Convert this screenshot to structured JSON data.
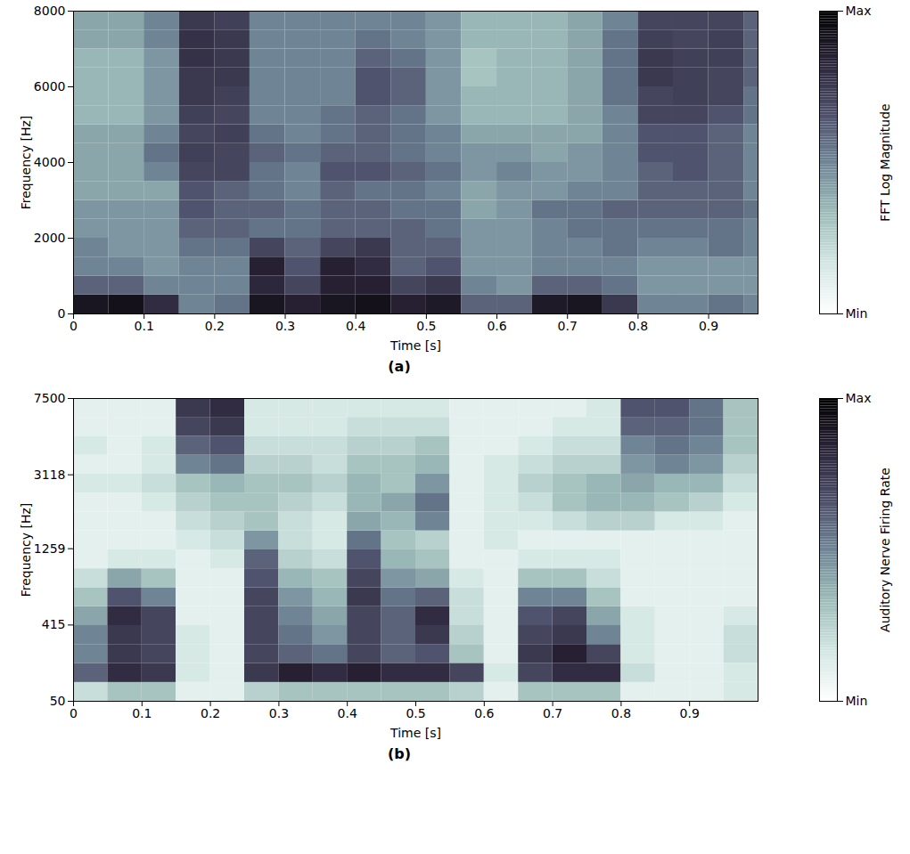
{
  "chart_data": [
    {
      "type": "heatmap",
      "caption": "(a)",
      "x_label": "Time [s]",
      "y_label": "Frequency [Hz]",
      "xlim": [
        0,
        0.97
      ],
      "xticks": [
        0,
        0.1,
        0.2,
        0.3,
        0.4,
        0.5,
        0.6,
        0.7,
        0.8,
        0.9
      ],
      "ylim": [
        0,
        8000
      ],
      "yticks": [
        0,
        2000,
        4000,
        6000,
        8000
      ],
      "x_bins": [
        0,
        0.05,
        0.1,
        0.15,
        0.2,
        0.25,
        0.3,
        0.35,
        0.4,
        0.45,
        0.5,
        0.55,
        0.6,
        0.65,
        0.7,
        0.75,
        0.8,
        0.85,
        0.9,
        0.95,
        0.97
      ],
      "y_bins": [
        0,
        500,
        1000,
        1500,
        2000,
        2500,
        3000,
        3500,
        4000,
        4500,
        5000,
        5500,
        6000,
        6500,
        7000,
        7500,
        8000
      ],
      "cells": [
        [
          0.9,
          0.92,
          0.8,
          0.5,
          0.55,
          0.9,
          0.85,
          0.9,
          0.92,
          0.85,
          0.88,
          0.6,
          0.6,
          0.88,
          0.9,
          0.75,
          0.5,
          0.5,
          0.55,
          0.5
        ],
        [
          0.6,
          0.6,
          0.5,
          0.5,
          0.5,
          0.82,
          0.7,
          0.85,
          0.85,
          0.7,
          0.75,
          0.5,
          0.45,
          0.6,
          0.6,
          0.55,
          0.45,
          0.45,
          0.45,
          0.45
        ],
        [
          0.5,
          0.5,
          0.45,
          0.5,
          0.5,
          0.85,
          0.65,
          0.85,
          0.8,
          0.6,
          0.65,
          0.45,
          0.45,
          0.5,
          0.5,
          0.5,
          0.45,
          0.45,
          0.45,
          0.45
        ],
        [
          0.5,
          0.45,
          0.45,
          0.55,
          0.55,
          0.7,
          0.6,
          0.7,
          0.75,
          0.6,
          0.6,
          0.45,
          0.45,
          0.5,
          0.5,
          0.55,
          0.5,
          0.5,
          0.55,
          0.5
        ],
        [
          0.45,
          0.45,
          0.45,
          0.6,
          0.6,
          0.55,
          0.55,
          0.6,
          0.6,
          0.6,
          0.55,
          0.45,
          0.45,
          0.5,
          0.55,
          0.55,
          0.55,
          0.55,
          0.55,
          0.5
        ],
        [
          0.45,
          0.45,
          0.45,
          0.65,
          0.6,
          0.6,
          0.55,
          0.6,
          0.6,
          0.55,
          0.55,
          0.4,
          0.45,
          0.55,
          0.55,
          0.6,
          0.6,
          0.6,
          0.6,
          0.55
        ],
        [
          0.4,
          0.4,
          0.4,
          0.65,
          0.6,
          0.55,
          0.5,
          0.6,
          0.55,
          0.55,
          0.5,
          0.4,
          0.45,
          0.45,
          0.5,
          0.5,
          0.6,
          0.6,
          0.6,
          0.5
        ],
        [
          0.4,
          0.4,
          0.5,
          0.7,
          0.7,
          0.55,
          0.5,
          0.65,
          0.65,
          0.6,
          0.55,
          0.45,
          0.5,
          0.45,
          0.45,
          0.5,
          0.6,
          0.65,
          0.6,
          0.5
        ],
        [
          0.4,
          0.4,
          0.55,
          0.72,
          0.7,
          0.6,
          0.55,
          0.6,
          0.6,
          0.55,
          0.5,
          0.45,
          0.45,
          0.4,
          0.45,
          0.5,
          0.65,
          0.65,
          0.6,
          0.5
        ],
        [
          0.4,
          0.4,
          0.5,
          0.7,
          0.72,
          0.55,
          0.5,
          0.55,
          0.6,
          0.55,
          0.5,
          0.4,
          0.4,
          0.4,
          0.4,
          0.5,
          0.65,
          0.65,
          0.6,
          0.5
        ],
        [
          0.35,
          0.35,
          0.45,
          0.72,
          0.7,
          0.5,
          0.5,
          0.55,
          0.6,
          0.55,
          0.45,
          0.35,
          0.35,
          0.35,
          0.4,
          0.5,
          0.7,
          0.7,
          0.65,
          0.55
        ],
        [
          0.35,
          0.35,
          0.45,
          0.75,
          0.72,
          0.5,
          0.5,
          0.5,
          0.65,
          0.6,
          0.45,
          0.35,
          0.35,
          0.35,
          0.4,
          0.55,
          0.7,
          0.72,
          0.7,
          0.55
        ],
        [
          0.35,
          0.35,
          0.45,
          0.75,
          0.75,
          0.5,
          0.5,
          0.5,
          0.65,
          0.6,
          0.45,
          0.3,
          0.35,
          0.35,
          0.4,
          0.55,
          0.75,
          0.72,
          0.7,
          0.6
        ],
        [
          0.35,
          0.35,
          0.45,
          0.78,
          0.75,
          0.5,
          0.5,
          0.5,
          0.6,
          0.55,
          0.45,
          0.3,
          0.35,
          0.35,
          0.4,
          0.55,
          0.75,
          0.72,
          0.72,
          0.6
        ],
        [
          0.4,
          0.4,
          0.5,
          0.78,
          0.75,
          0.5,
          0.5,
          0.5,
          0.55,
          0.5,
          0.45,
          0.35,
          0.35,
          0.35,
          0.4,
          0.55,
          0.72,
          0.7,
          0.72,
          0.6
        ],
        [
          0.4,
          0.4,
          0.5,
          0.75,
          0.72,
          0.5,
          0.5,
          0.5,
          0.5,
          0.5,
          0.45,
          0.35,
          0.35,
          0.35,
          0.4,
          0.5,
          0.7,
          0.7,
          0.7,
          0.6
        ]
      ],
      "colorbar": {
        "label": "FFT Log Magnitude",
        "range": [
          0,
          1
        ],
        "ticks": [
          {
            "value": 0,
            "label": "Min"
          },
          {
            "value": 1,
            "label": "Max"
          }
        ]
      }
    },
    {
      "type": "heatmap",
      "caption": "(b)",
      "x_label": "Time [s]",
      "y_label": "Frequency [Hz]",
      "xlim": [
        0,
        1.0
      ],
      "xticks": [
        0,
        0.1,
        0.2,
        0.3,
        0.4,
        0.5,
        0.6,
        0.7,
        0.8,
        0.9
      ],
      "ylim": [
        50,
        7500
      ],
      "yticks": [
        50,
        415,
        1259,
        3118,
        7500
      ],
      "x_bins": [
        0,
        0.05,
        0.1,
        0.15,
        0.2,
        0.25,
        0.3,
        0.35,
        0.4,
        0.45,
        0.5,
        0.55,
        0.6,
        0.65,
        0.7,
        0.75,
        0.8,
        0.85,
        0.9,
        0.95,
        1.0
      ],
      "y_bins": [
        50,
        114,
        194,
        291,
        411,
        559,
        741,
        965,
        1240,
        1580,
        1996,
        2510,
        3142,
        3920,
        4878,
        6057,
        7500
      ],
      "cells": [
        [
          0.2,
          0.3,
          0.3,
          0.1,
          0.1,
          0.25,
          0.3,
          0.3,
          0.3,
          0.3,
          0.3,
          0.25,
          0.1,
          0.3,
          0.3,
          0.3,
          0.1,
          0.1,
          0.1,
          0.15
        ],
        [
          0.6,
          0.8,
          0.75,
          0.15,
          0.1,
          0.75,
          0.85,
          0.8,
          0.85,
          0.8,
          0.8,
          0.7,
          0.15,
          0.7,
          0.8,
          0.8,
          0.2,
          0.1,
          0.1,
          0.15
        ],
        [
          0.5,
          0.75,
          0.7,
          0.15,
          0.1,
          0.7,
          0.6,
          0.55,
          0.7,
          0.6,
          0.65,
          0.3,
          0.1,
          0.75,
          0.85,
          0.7,
          0.15,
          0.1,
          0.1,
          0.2
        ],
        [
          0.5,
          0.75,
          0.7,
          0.15,
          0.1,
          0.7,
          0.55,
          0.45,
          0.7,
          0.6,
          0.75,
          0.25,
          0.1,
          0.7,
          0.75,
          0.5,
          0.15,
          0.1,
          0.1,
          0.2
        ],
        [
          0.4,
          0.8,
          0.7,
          0.1,
          0.1,
          0.7,
          0.5,
          0.4,
          0.7,
          0.6,
          0.8,
          0.2,
          0.1,
          0.65,
          0.7,
          0.4,
          0.15,
          0.1,
          0.1,
          0.15
        ],
        [
          0.3,
          0.65,
          0.5,
          0.1,
          0.1,
          0.7,
          0.45,
          0.35,
          0.75,
          0.55,
          0.6,
          0.2,
          0.1,
          0.5,
          0.5,
          0.3,
          0.1,
          0.1,
          0.1,
          0.1
        ],
        [
          0.2,
          0.4,
          0.3,
          0.1,
          0.1,
          0.65,
          0.35,
          0.3,
          0.7,
          0.45,
          0.4,
          0.15,
          0.1,
          0.3,
          0.3,
          0.2,
          0.1,
          0.1,
          0.1,
          0.1
        ],
        [
          0.1,
          0.15,
          0.15,
          0.1,
          0.15,
          0.6,
          0.25,
          0.2,
          0.65,
          0.35,
          0.3,
          0.1,
          0.1,
          0.15,
          0.15,
          0.15,
          0.1,
          0.1,
          0.1,
          0.1
        ],
        [
          0.1,
          0.1,
          0.1,
          0.15,
          0.2,
          0.45,
          0.2,
          0.15,
          0.55,
          0.3,
          0.25,
          0.1,
          0.15,
          0.1,
          0.1,
          0.1,
          0.1,
          0.1,
          0.1,
          0.1
        ],
        [
          0.1,
          0.1,
          0.1,
          0.2,
          0.25,
          0.3,
          0.2,
          0.15,
          0.4,
          0.35,
          0.5,
          0.1,
          0.15,
          0.15,
          0.2,
          0.25,
          0.25,
          0.15,
          0.15,
          0.1
        ],
        [
          0.1,
          0.1,
          0.15,
          0.25,
          0.3,
          0.3,
          0.25,
          0.2,
          0.35,
          0.4,
          0.55,
          0.1,
          0.15,
          0.2,
          0.3,
          0.35,
          0.35,
          0.3,
          0.25,
          0.15
        ],
        [
          0.15,
          0.15,
          0.2,
          0.3,
          0.35,
          0.3,
          0.3,
          0.25,
          0.35,
          0.3,
          0.45,
          0.1,
          0.15,
          0.25,
          0.3,
          0.35,
          0.4,
          0.35,
          0.35,
          0.2
        ],
        [
          0.1,
          0.1,
          0.15,
          0.5,
          0.55,
          0.25,
          0.25,
          0.2,
          0.3,
          0.3,
          0.35,
          0.1,
          0.15,
          0.2,
          0.25,
          0.25,
          0.45,
          0.5,
          0.45,
          0.25
        ],
        [
          0.15,
          0.1,
          0.15,
          0.6,
          0.65,
          0.2,
          0.2,
          0.2,
          0.25,
          0.25,
          0.3,
          0.1,
          0.1,
          0.15,
          0.2,
          0.2,
          0.5,
          0.55,
          0.5,
          0.3
        ],
        [
          0.1,
          0.1,
          0.1,
          0.7,
          0.75,
          0.15,
          0.15,
          0.15,
          0.2,
          0.2,
          0.2,
          0.1,
          0.1,
          0.1,
          0.15,
          0.15,
          0.6,
          0.6,
          0.55,
          0.3
        ],
        [
          0.1,
          0.1,
          0.1,
          0.75,
          0.8,
          0.15,
          0.15,
          0.15,
          0.15,
          0.15,
          0.15,
          0.1,
          0.1,
          0.1,
          0.1,
          0.15,
          0.65,
          0.65,
          0.55,
          0.3
        ]
      ],
      "colorbar": {
        "label": "Auditory Nerve Firing Rate",
        "range": [
          0,
          1
        ],
        "ticks": [
          {
            "value": 0,
            "label": "Min"
          },
          {
            "value": 1,
            "label": "Max"
          }
        ]
      }
    }
  ]
}
